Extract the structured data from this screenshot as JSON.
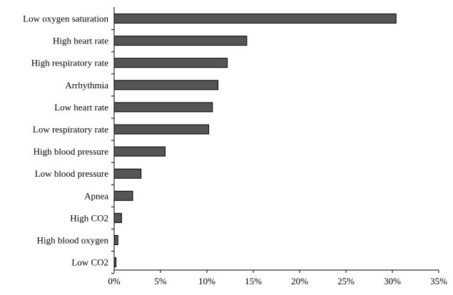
{
  "chart_data": {
    "type": "bar",
    "orientation": "horizontal",
    "categories": [
      "Low oxygen saturation",
      "High heart rate",
      "High respiratory rate",
      "Arrhythmia",
      "Low heart rate",
      "Low respiratory rate",
      "High blood pressure",
      "Low blood pressure",
      "Apnea",
      "High CO2",
      "High blood oxygen",
      "Low CO2"
    ],
    "values": [
      30.4,
      14.3,
      12.2,
      11.2,
      10.6,
      10.2,
      5.5,
      2.9,
      2.0,
      0.8,
      0.4,
      0.2
    ],
    "x_ticks": [
      "0%",
      "5%",
      "10%",
      "15%",
      "20%",
      "25%",
      "30%",
      "35%"
    ],
    "xlim": [
      0,
      35
    ],
    "unit": "%",
    "grid": false,
    "legend": "none",
    "bar_color": "#555555",
    "bar_outline_color": "#000000"
  }
}
